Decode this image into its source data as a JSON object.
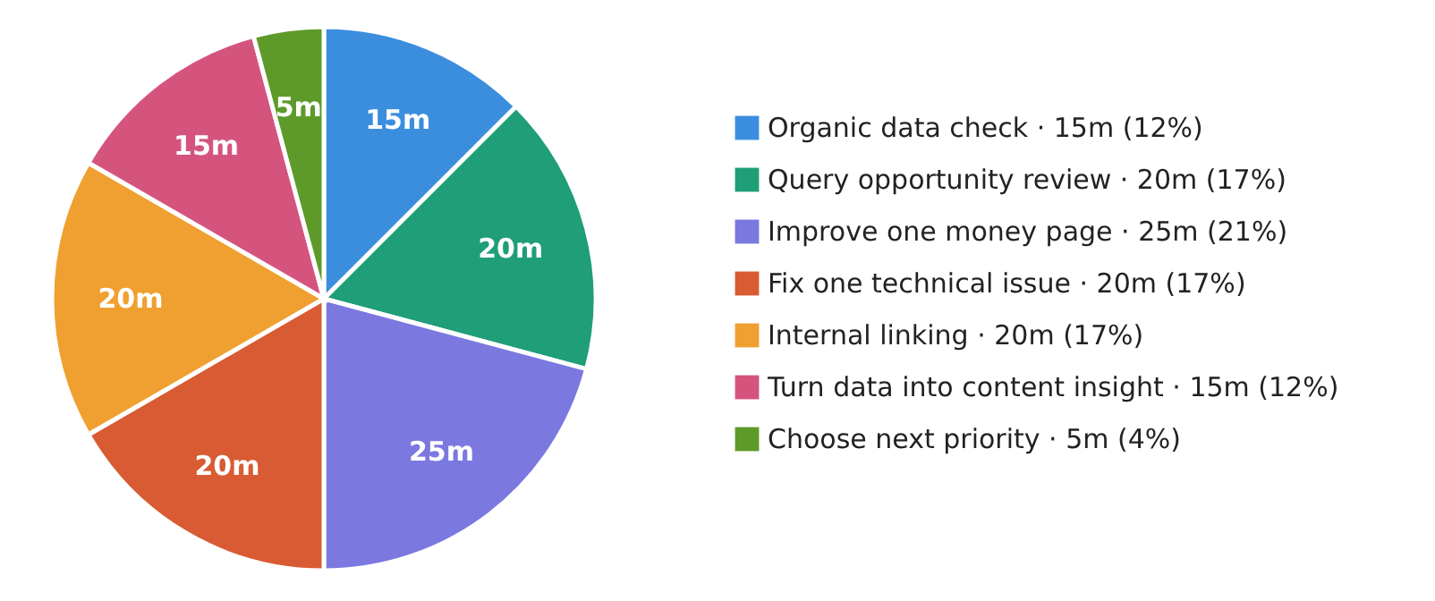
{
  "chart_data": {
    "type": "pie",
    "categories": [
      "Organic data check · 15m (12%)",
      "Query opportunity review · 20m (17%)",
      "Improve one money page · 25m (21%)",
      "Fix one technical issue · 20m (17%)",
      "Internal linking · 20m (17%)",
      "Turn data into content insight · 15m (12%)",
      "Choose next priority · 5m (4%)"
    ],
    "values": [
      15,
      20,
      25,
      20,
      20,
      15,
      5
    ],
    "value_labels": [
      "15m",
      "20m",
      "25m",
      "20m",
      "20m",
      "15m",
      "5m"
    ],
    "colors": [
      "#3b8ede",
      "#1f9e77",
      "#7b78e0",
      "#d95b33",
      "#f0a030",
      "#d5547e",
      "#5e9a2a"
    ],
    "legend": "right"
  }
}
